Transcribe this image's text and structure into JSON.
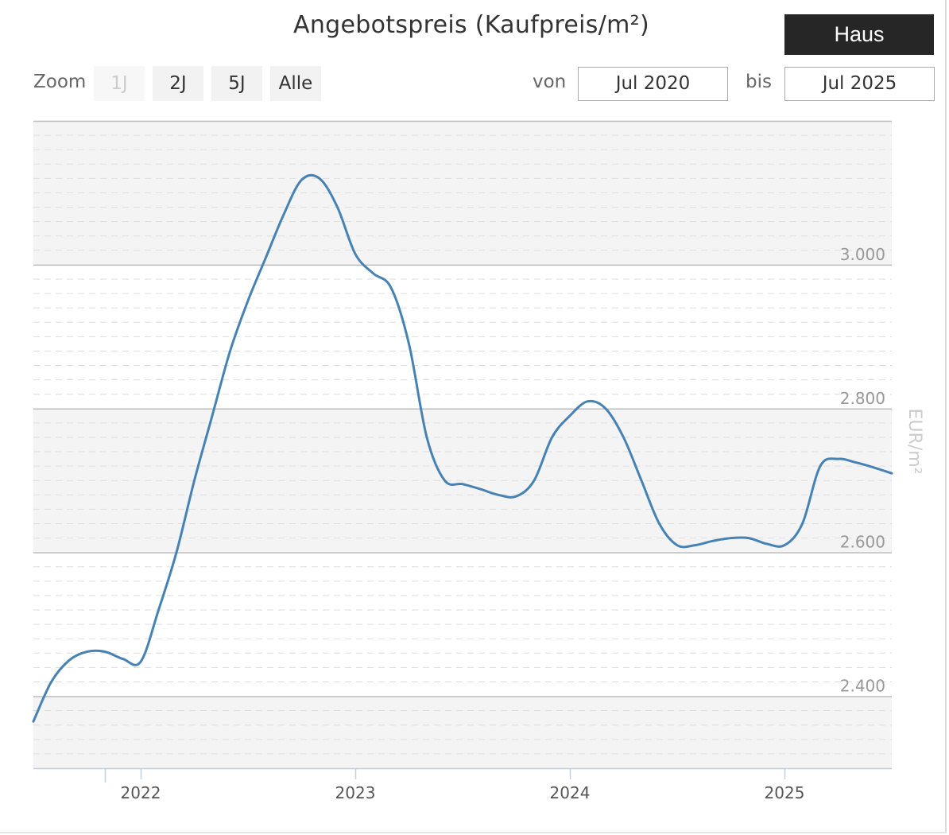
{
  "header": {
    "title": "Angebotspreis (Kaufpreis/m²)",
    "type_button": "Haus"
  },
  "zoom": {
    "label": "Zoom",
    "buttons": [
      {
        "label": "1J",
        "disabled": true
      },
      {
        "label": "2J",
        "disabled": false
      },
      {
        "label": "5J",
        "disabled": false
      },
      {
        "label": "Alle",
        "disabled": false
      }
    ]
  },
  "range": {
    "from_label": "von",
    "from_value": "Jul 2020",
    "to_label": "bis",
    "to_value": "Jul 2025"
  },
  "colors": {
    "line": "#4682b4",
    "band": "#f4f4f4",
    "grid_major": "#bbbbbb",
    "grid_minor": "#dddddd",
    "axis": "#c0d0e0"
  },
  "chart_data": {
    "type": "line",
    "title": "Angebotspreis (Kaufpreis/m²)",
    "xlabel": "",
    "ylabel": "EUR/m²",
    "ylim": [
      2300,
      3200
    ],
    "xlim": [
      "2021-07",
      "2025-07"
    ],
    "x_ticks": [
      "2022",
      "2023",
      "2024",
      "2025"
    ],
    "y_ticks": [
      "2.400",
      "2.600",
      "2.800",
      "3.000"
    ],
    "y_tick_values": [
      2400,
      2600,
      2800,
      3000
    ],
    "grid": true,
    "legend": "none",
    "series": [
      {
        "x": [
          "2021-07",
          "2021-08",
          "2021-09",
          "2021-10",
          "2021-11",
          "2021-12",
          "2022-01",
          "2022-02",
          "2022-03",
          "2022-04",
          "2022-05",
          "2022-06",
          "2022-07",
          "2022-08",
          "2022-09",
          "2022-10",
          "2022-11",
          "2022-12",
          "2023-01",
          "2023-02",
          "2023-03",
          "2023-04",
          "2023-05",
          "2023-06",
          "2023-07",
          "2023-08",
          "2023-09",
          "2023-10",
          "2023-11",
          "2023-12",
          "2024-01",
          "2024-02",
          "2024-03",
          "2024-04",
          "2024-05",
          "2024-06",
          "2024-07",
          "2024-08",
          "2024-09",
          "2024-10",
          "2024-11",
          "2024-12",
          "2025-01",
          "2025-02",
          "2025-03",
          "2025-04",
          "2025-05",
          "2025-06",
          "2025-07"
        ],
        "values": [
          2365,
          2420,
          2450,
          2462,
          2462,
          2452,
          2448,
          2520,
          2600,
          2700,
          2790,
          2880,
          2950,
          3010,
          3070,
          3118,
          3120,
          3080,
          3015,
          2988,
          2968,
          2890,
          2760,
          2700,
          2695,
          2688,
          2680,
          2678,
          2700,
          2760,
          2790,
          2810,
          2800,
          2760,
          2700,
          2640,
          2610,
          2610,
          2616,
          2620,
          2620,
          2612,
          2610,
          2640,
          2720,
          2730,
          2725,
          2718,
          2710
        ]
      }
    ]
  }
}
